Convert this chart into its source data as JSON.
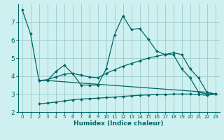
{
  "xlabel": "Humidex (Indice chaleur)",
  "bg_color": "#cff0f0",
  "grid_color": "#99cccc",
  "line_color": "#006666",
  "xlim": [
    -0.5,
    23.5
  ],
  "ylim": [
    2,
    8
  ],
  "yticks": [
    2,
    3,
    4,
    5,
    6,
    7
  ],
  "xticks": [
    0,
    1,
    2,
    3,
    4,
    5,
    6,
    7,
    8,
    9,
    10,
    11,
    12,
    13,
    14,
    15,
    16,
    17,
    18,
    19,
    20,
    21,
    22,
    23
  ],
  "lines": [
    {
      "x": [
        0,
        1,
        2,
        3,
        22,
        23
      ],
      "y": [
        7.7,
        6.35,
        3.75,
        3.75,
        3.1,
        3.0
      ]
    },
    {
      "x": [
        3,
        4,
        5,
        6,
        7,
        8,
        9,
        10,
        11,
        12,
        13,
        14,
        15,
        16,
        17,
        18,
        19,
        20,
        21,
        22,
        23
      ],
      "y": [
        3.75,
        4.25,
        4.6,
        4.15,
        3.5,
        3.5,
        3.5,
        4.4,
        6.3,
        7.35,
        6.6,
        6.65,
        6.05,
        5.4,
        5.2,
        5.2,
        4.4,
        3.9,
        3.1,
        3.0,
        3.0
      ]
    },
    {
      "x": [
        2,
        3,
        4,
        5,
        6,
        7,
        8,
        9,
        10,
        11,
        12,
        13,
        14,
        15,
        16,
        17,
        18,
        19,
        20,
        21,
        22,
        23
      ],
      "y": [
        3.75,
        3.8,
        3.95,
        4.1,
        4.15,
        4.05,
        3.95,
        3.9,
        4.15,
        4.35,
        4.55,
        4.7,
        4.85,
        5.0,
        5.1,
        5.2,
        5.3,
        5.2,
        4.4,
        3.9,
        3.1,
        3.0
      ]
    },
    {
      "x": [
        2,
        3,
        4,
        5,
        6,
        7,
        8,
        9,
        10,
        11,
        12,
        13,
        14,
        15,
        16,
        17,
        18,
        19,
        20,
        21,
        22,
        23
      ],
      "y": [
        2.45,
        2.5,
        2.55,
        2.62,
        2.68,
        2.72,
        2.75,
        2.77,
        2.8,
        2.83,
        2.87,
        2.9,
        2.93,
        2.95,
        2.97,
        2.98,
        3.0,
        3.0,
        3.0,
        2.97,
        2.93,
        3.0
      ]
    }
  ]
}
